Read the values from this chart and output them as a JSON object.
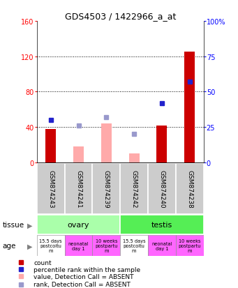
{
  "title": "GDS4503 / 1422966_a_at",
  "samples": [
    "GSM874243",
    "GSM874241",
    "GSM874239",
    "GSM874242",
    "GSM874240",
    "GSM874238"
  ],
  "red_bars": [
    38,
    0,
    0,
    0,
    42,
    125
  ],
  "pink_bars": [
    0,
    18,
    44,
    10,
    0,
    0
  ],
  "blue_squares": [
    30,
    0,
    0,
    0,
    42,
    57
  ],
  "lavender_squares": [
    0,
    26,
    32,
    20,
    0,
    0
  ],
  "yticks_left": [
    0,
    40,
    80,
    120,
    160
  ],
  "ytick_labels_left": [
    "0",
    "40",
    "80",
    "120",
    "160"
  ],
  "yticks_right": [
    0,
    25,
    50,
    75,
    100
  ],
  "ytick_labels_right": [
    "0",
    "25",
    "50",
    "75",
    "100%"
  ],
  "ylim_left": [
    0,
    160
  ],
  "ylim_right": [
    0,
    100
  ],
  "bar_color_red": "#cc0000",
  "bar_color_pink": "#ffaaaa",
  "dot_color_blue": "#2222cc",
  "dot_color_lavender": "#9999cc",
  "sample_box_color": "#cccccc",
  "tissue_ovary_color": "#aaffaa",
  "tissue_testis_color": "#55ee55",
  "age_white_color": "#ffffff",
  "age_pink_color": "#ff66ff",
  "legend_items": [
    {
      "color": "#cc0000",
      "label": "count"
    },
    {
      "color": "#2222cc",
      "label": "percentile rank within the sample"
    },
    {
      "color": "#ffaaaa",
      "label": "value, Detection Call = ABSENT"
    },
    {
      "color": "#9999cc",
      "label": "rank, Detection Call = ABSENT"
    }
  ]
}
